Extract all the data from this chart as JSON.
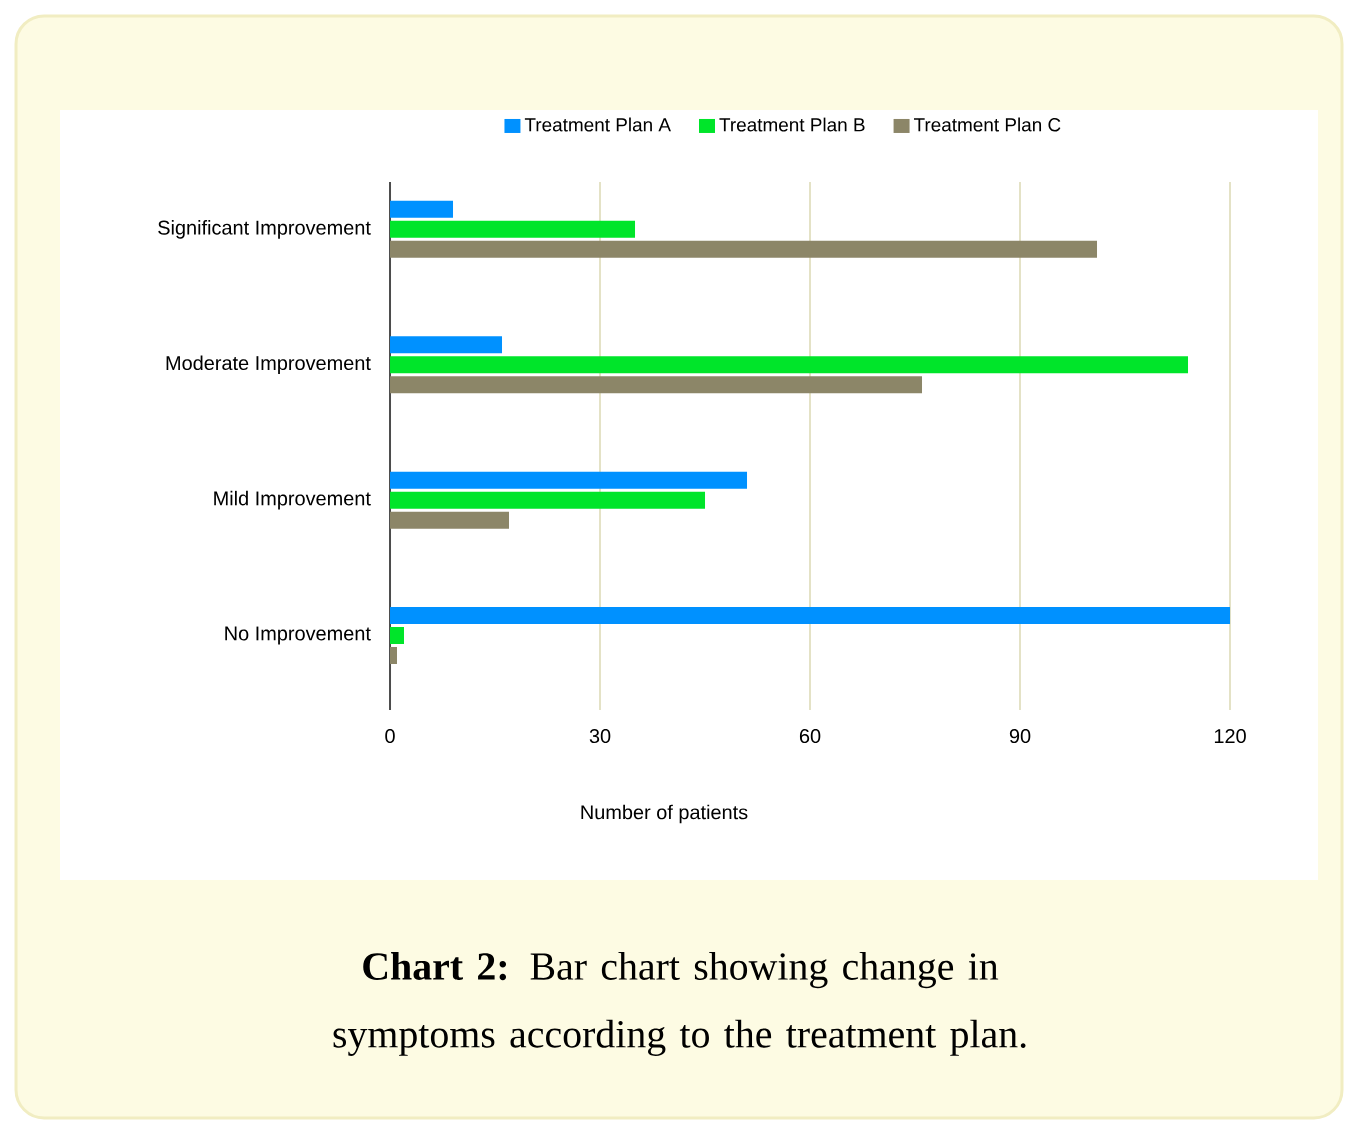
{
  "chart_data": {
    "type": "bar",
    "orientation": "horizontal",
    "title": "**Chart 2:** Bar chart showing change in symptoms according to the treatment plan.",
    "xlabel": "Number of patients",
    "categories": [
      "Significant Improvement",
      "Moderate Improvement",
      "Mild Improvement",
      "No Improvement"
    ],
    "series": [
      {
        "name": "Treatment Plan A",
        "color": "#0091ff",
        "values": [
          9,
          16,
          51,
          120
        ]
      },
      {
        "name": "Treatment Plan B",
        "color": "#00e52a",
        "values": [
          35,
          114,
          45,
          2
        ]
      },
      {
        "name": "Treatment Plan C",
        "color": "#8c8668",
        "values": [
          101,
          76,
          17,
          1
        ]
      }
    ],
    "xlim": [
      0,
      120
    ],
    "xticks": [
      0,
      30,
      60,
      90,
      120
    ],
    "grid": "x",
    "legend": "top"
  }
}
